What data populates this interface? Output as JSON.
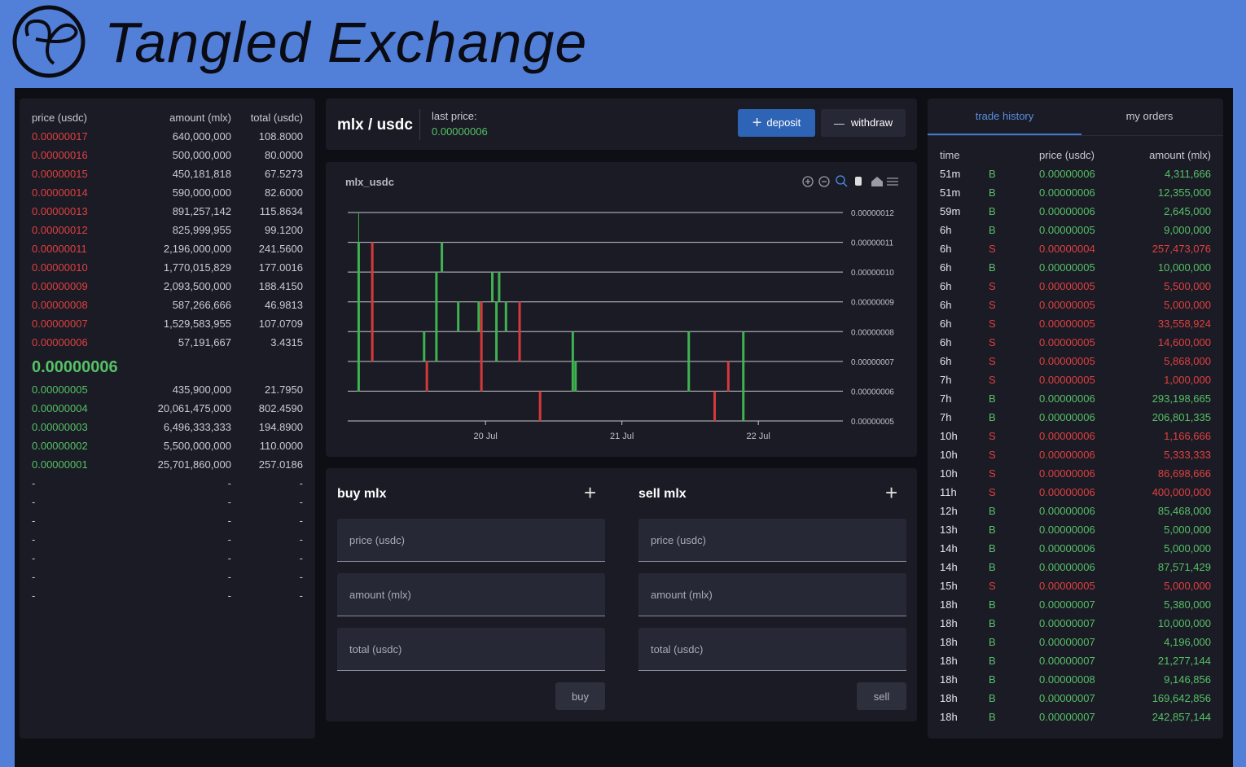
{
  "header": {
    "title": "Tangled Exchange"
  },
  "order_book": {
    "columns": [
      "price (usdc)",
      "amount (mlx)",
      "total (usdc)"
    ],
    "asks": [
      [
        "0.00000017",
        "640,000,000",
        "108.8000"
      ],
      [
        "0.00000016",
        "500,000,000",
        "80.0000"
      ],
      [
        "0.00000015",
        "450,181,818",
        "67.5273"
      ],
      [
        "0.00000014",
        "590,000,000",
        "82.6000"
      ],
      [
        "0.00000013",
        "891,257,142",
        "115.8634"
      ],
      [
        "0.00000012",
        "825,999,955",
        "99.1200"
      ],
      [
        "0.00000011",
        "2,196,000,000",
        "241.5600"
      ],
      [
        "0.00000010",
        "1,770,015,829",
        "177.0016"
      ],
      [
        "0.00000009",
        "2,093,500,000",
        "188.4150"
      ],
      [
        "0.00000008",
        "587,266,666",
        "46.9813"
      ],
      [
        "0.00000007",
        "1,529,583,955",
        "107.0709"
      ],
      [
        "0.00000006",
        "57,191,667",
        "3.4315"
      ]
    ],
    "last_price": "0.00000006",
    "bids": [
      [
        "0.00000005",
        "435,900,000",
        "21.7950"
      ],
      [
        "0.00000004",
        "20,061,475,000",
        "802.4590"
      ],
      [
        "0.00000003",
        "6,496,333,333",
        "194.8900"
      ],
      [
        "0.00000002",
        "5,500,000,000",
        "110.0000"
      ],
      [
        "0.00000001",
        "25,701,860,000",
        "257.0186"
      ]
    ],
    "empty_rows": [
      [
        "-",
        "-",
        "-"
      ],
      [
        "-",
        "-",
        "-"
      ],
      [
        "-",
        "-",
        "-"
      ],
      [
        "-",
        "-",
        "-"
      ],
      [
        "-",
        "-",
        "-"
      ],
      [
        "-",
        "-",
        "-"
      ],
      [
        "-",
        "-",
        "-"
      ]
    ]
  },
  "market": {
    "pair": "mlx / usdc",
    "last_price_label": "last price:",
    "last_price": "0.00000006",
    "deposit": "deposit",
    "withdraw": "withdraw"
  },
  "chart_data": {
    "type": "candlestick",
    "title": "mlx_usdc",
    "x": [
      19.07,
      19.17,
      19.55,
      19.57,
      19.64,
      19.68,
      19.8,
      19.95,
      19.97,
      20.05,
      20.08,
      20.1,
      20.15,
      20.25,
      20.4,
      20.64,
      20.66,
      21.49,
      21.68,
      21.78,
      21.89
    ],
    "open": [
      6e-08,
      1.1e-07,
      7e-08,
      7e-08,
      7e-08,
      1e-07,
      8e-08,
      8e-08,
      9e-08,
      9e-08,
      7e-08,
      9e-08,
      8e-08,
      9e-08,
      6e-08,
      6e-08,
      6e-08,
      6e-08,
      6e-08,
      7e-08,
      5e-08
    ],
    "high": [
      1.2e-07,
      1.1e-07,
      8e-08,
      7e-08,
      1e-07,
      1.1e-07,
      9e-08,
      9e-08,
      9e-08,
      1e-07,
      9e-08,
      1e-07,
      9e-08,
      9e-08,
      6e-08,
      8e-08,
      7e-08,
      8e-08,
      6e-08,
      7e-08,
      8e-08
    ],
    "low": [
      6e-08,
      7e-08,
      7e-08,
      6e-08,
      7e-08,
      1e-07,
      8e-08,
      8e-08,
      6e-08,
      9e-08,
      7e-08,
      9e-08,
      8e-08,
      7e-08,
      5e-08,
      6e-08,
      6e-08,
      6e-08,
      5e-08,
      6e-08,
      5e-08
    ],
    "close": [
      1.1e-07,
      7e-08,
      8e-08,
      6e-08,
      1e-07,
      1.1e-07,
      9e-08,
      9e-08,
      6e-08,
      1e-07,
      9e-08,
      1e-07,
      9e-08,
      7e-08,
      5e-08,
      8e-08,
      7e-08,
      8e-08,
      5e-08,
      6e-08,
      8e-08
    ],
    "colors": {
      "up": "#3fb34f",
      "down": "#d6393b"
    },
    "xlim": [
      18.99,
      22.62
    ],
    "ylim": [
      5e-08,
      1.2e-07
    ],
    "xticks": [
      {
        "value": 20,
        "label": "20 Jul"
      },
      {
        "value": 21,
        "label": "21 Jul"
      },
      {
        "value": 22,
        "label": "22 Jul"
      }
    ],
    "yticks": [
      {
        "value": 5e-08,
        "label": "0.00000005"
      },
      {
        "value": 6e-08,
        "label": "0.00000006"
      },
      {
        "value": 7e-08,
        "label": "0.00000007"
      },
      {
        "value": 8e-08,
        "label": "0.00000008"
      },
      {
        "value": 9e-08,
        "label": "0.00000009"
      },
      {
        "value": 1e-07,
        "label": "0.00000010"
      },
      {
        "value": 1.1e-07,
        "label": "0.00000011"
      },
      {
        "value": 1.2e-07,
        "label": "0.00000012"
      }
    ],
    "grid": true
  },
  "trade_form": {
    "buy": {
      "title": "buy mlx",
      "fields": [
        "price (usdc)",
        "amount (mlx)",
        "total (usdc)"
      ],
      "button": "buy"
    },
    "sell": {
      "title": "sell mlx",
      "fields": [
        "price (usdc)",
        "amount (mlx)",
        "total (usdc)"
      ],
      "button": "sell"
    }
  },
  "trade_history": {
    "tabs": [
      "trade history",
      "my orders"
    ],
    "columns": [
      "time",
      "price (usdc)",
      "amount (mlx)"
    ],
    "rows": [
      [
        "51m",
        "B",
        "0.00000006",
        "4,311,666"
      ],
      [
        "51m",
        "B",
        "0.00000006",
        "12,355,000"
      ],
      [
        "59m",
        "B",
        "0.00000006",
        "2,645,000"
      ],
      [
        "6h",
        "B",
        "0.00000005",
        "9,000,000"
      ],
      [
        "6h",
        "S",
        "0.00000004",
        "257,473,076"
      ],
      [
        "6h",
        "B",
        "0.00000005",
        "10,000,000"
      ],
      [
        "6h",
        "S",
        "0.00000005",
        "5,500,000"
      ],
      [
        "6h",
        "S",
        "0.00000005",
        "5,000,000"
      ],
      [
        "6h",
        "S",
        "0.00000005",
        "33,558,924"
      ],
      [
        "6h",
        "S",
        "0.00000005",
        "14,600,000"
      ],
      [
        "6h",
        "S",
        "0.00000005",
        "5,868,000"
      ],
      [
        "7h",
        "S",
        "0.00000005",
        "1,000,000"
      ],
      [
        "7h",
        "B",
        "0.00000006",
        "293,198,665"
      ],
      [
        "7h",
        "B",
        "0.00000006",
        "206,801,335"
      ],
      [
        "10h",
        "S",
        "0.00000006",
        "1,166,666"
      ],
      [
        "10h",
        "S",
        "0.00000006",
        "5,333,333"
      ],
      [
        "10h",
        "S",
        "0.00000006",
        "86,698,666"
      ],
      [
        "11h",
        "S",
        "0.00000006",
        "400,000,000"
      ],
      [
        "12h",
        "B",
        "0.00000006",
        "85,468,000"
      ],
      [
        "13h",
        "B",
        "0.00000006",
        "5,000,000"
      ],
      [
        "14h",
        "B",
        "0.00000006",
        "5,000,000"
      ],
      [
        "14h",
        "B",
        "0.00000006",
        "87,571,429"
      ],
      [
        "15h",
        "S",
        "0.00000005",
        "5,000,000"
      ],
      [
        "18h",
        "B",
        "0.00000007",
        "5,380,000"
      ],
      [
        "18h",
        "B",
        "0.00000007",
        "10,000,000"
      ],
      [
        "18h",
        "B",
        "0.00000007",
        "4,196,000"
      ],
      [
        "18h",
        "B",
        "0.00000007",
        "21,277,144"
      ],
      [
        "18h",
        "B",
        "0.00000008",
        "9,146,856"
      ],
      [
        "18h",
        "B",
        "0.00000007",
        "169,642,856"
      ],
      [
        "18h",
        "B",
        "0.00000007",
        "242,857,144"
      ]
    ]
  }
}
